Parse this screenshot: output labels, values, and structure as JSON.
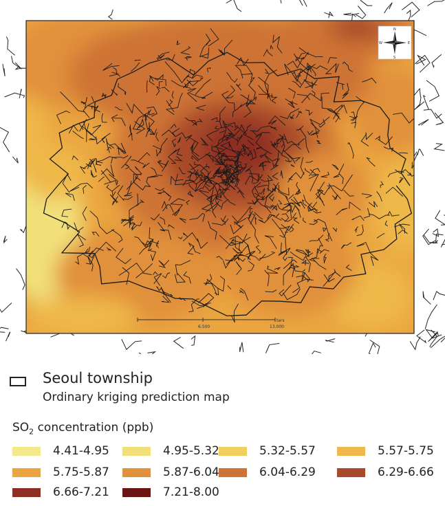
{
  "map": {
    "compass": {
      "n": "N",
      "s": "S",
      "e": "E",
      "w": "W"
    },
    "scale": {
      "mid_label": "6.500",
      "end_label": "13.000",
      "unit": "ters"
    }
  },
  "legend": {
    "township_label": "Seoul township",
    "map_subtitle": "Ordinary kriging prediction map",
    "conc_prefix": "SO",
    "conc_sub": "2",
    "conc_suffix": " concentration (ppb)",
    "classes": [
      {
        "label": "4.41-4.95",
        "color": "#f3e98a"
      },
      {
        "label": "4.95-5.32",
        "color": "#f1e07a"
      },
      {
        "label": "5.32-5.57",
        "color": "#f1cf5f"
      },
      {
        "label": "5.57-5.75",
        "color": "#eeb84a"
      },
      {
        "label": "5.75-5.87",
        "color": "#eba540"
      },
      {
        "label": "5.87-6.04",
        "color": "#e1903b"
      },
      {
        "label": "6.04-6.29",
        "color": "#cd7336"
      },
      {
        "label": "6.29-6.66",
        "color": "#a8492a"
      },
      {
        "label": "6.66-7.21",
        "color": "#8e2e22"
      },
      {
        "label": "7.21-8.00",
        "color": "#6a1313"
      }
    ]
  }
}
